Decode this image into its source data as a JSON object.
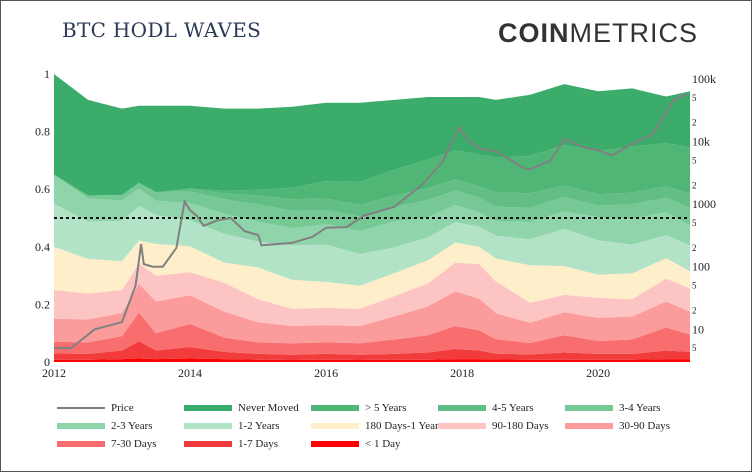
{
  "title": "BTC HODL WAVES",
  "brand": {
    "bold": "COIN",
    "light": "METRICS"
  },
  "chart_data": {
    "type": "area",
    "subtype": "stacked-100-percent",
    "x_axis": {
      "ticks": [
        "2012",
        "2014",
        "2016",
        "2018",
        "2020"
      ],
      "range": [
        "2012-01",
        "2021-05"
      ]
    },
    "y_axis_left": {
      "ticks": [
        "0",
        "0.2",
        "0.4",
        "0.6",
        "0.8",
        "1"
      ],
      "ylim": [
        0,
        1
      ]
    },
    "y_axis_right": {
      "scale": "log",
      "range": [
        3,
        120000
      ],
      "major_ticks": [
        "10",
        "100",
        "1000",
        "10k",
        "100k"
      ],
      "minor_ticks": [
        {
          "v": 5,
          "label": "5"
        },
        {
          "v": 20,
          "label": "2"
        },
        {
          "v": 50,
          "label": "5"
        },
        {
          "v": 200,
          "label": "2"
        },
        {
          "v": 500,
          "label": "5"
        },
        {
          "v": 2000,
          "label": "2"
        },
        {
          "v": 5000,
          "label": "5"
        },
        {
          "v": 20000,
          "label": "2"
        },
        {
          "v": 50000,
          "label": "5"
        }
      ]
    },
    "reference_line": {
      "y": 0.5,
      "style": "dotted"
    },
    "x": [
      "2012.0",
      "2012.5",
      "2013.0",
      "2013.25",
      "2013.5",
      "2014.0",
      "2014.5",
      "2015.0",
      "2015.5",
      "2016.0",
      "2016.5",
      "2017.0",
      "2017.5",
      "2017.9",
      "2018.25",
      "2018.5",
      "2019.0",
      "2019.5",
      "2020.0",
      "2020.5",
      "2021.0",
      "2021.35"
    ],
    "series": [
      {
        "name": "< 1 Day",
        "color": "#ff0000",
        "values": [
          0.008,
          0.008,
          0.01,
          0.012,
          0.01,
          0.012,
          0.01,
          0.008,
          0.007,
          0.008,
          0.007,
          0.008,
          0.008,
          0.01,
          0.01,
          0.009,
          0.008,
          0.008,
          0.008,
          0.008,
          0.01,
          0.01
        ]
      },
      {
        "name": "1-7 Days",
        "color": "#f23b3b",
        "values": [
          0.022,
          0.02,
          0.03,
          0.06,
          0.03,
          0.04,
          0.025,
          0.02,
          0.018,
          0.02,
          0.018,
          0.02,
          0.025,
          0.035,
          0.03,
          0.02,
          0.018,
          0.025,
          0.02,
          0.02,
          0.03,
          0.025
        ]
      },
      {
        "name": "7-30 Days",
        "color": "#f86e6e",
        "values": [
          0.04,
          0.04,
          0.05,
          0.1,
          0.06,
          0.08,
          0.05,
          0.04,
          0.04,
          0.04,
          0.04,
          0.05,
          0.06,
          0.08,
          0.07,
          0.05,
          0.04,
          0.06,
          0.045,
          0.05,
          0.08,
          0.06
        ]
      },
      {
        "name": "30-90 Days",
        "color": "#fb9b9b",
        "values": [
          0.08,
          0.08,
          0.08,
          0.1,
          0.11,
          0.1,
          0.09,
          0.07,
          0.06,
          0.06,
          0.06,
          0.08,
          0.1,
          0.12,
          0.11,
          0.09,
          0.07,
          0.08,
          0.08,
          0.08,
          0.09,
          0.08
        ]
      },
      {
        "name": "90-180 Days",
        "color": "#fdc4c4",
        "values": [
          0.1,
          0.09,
          0.08,
          0.07,
          0.09,
          0.08,
          0.1,
          0.08,
          0.06,
          0.06,
          0.06,
          0.07,
          0.08,
          0.1,
          0.12,
          0.11,
          0.07,
          0.06,
          0.07,
          0.06,
          0.08,
          0.08
        ]
      },
      {
        "name": "180 Days-1 Year",
        "color": "#feeeca",
        "values": [
          0.15,
          0.12,
          0.1,
          0.08,
          0.11,
          0.09,
          0.07,
          0.11,
          0.1,
          0.09,
          0.08,
          0.08,
          0.08,
          0.07,
          0.06,
          0.08,
          0.13,
          0.1,
          0.08,
          0.09,
          0.07,
          0.06
        ]
      },
      {
        "name": "1-2 Years",
        "color": "#b2e3c6",
        "values": [
          0.15,
          0.13,
          0.14,
          0.12,
          0.1,
          0.09,
          0.1,
          0.09,
          0.12,
          0.13,
          0.11,
          0.09,
          0.08,
          0.07,
          0.07,
          0.08,
          0.09,
          0.13,
          0.12,
          0.1,
          0.08,
          0.09
        ]
      },
      {
        "name": "2-3 Years",
        "color": "#8fd4aa",
        "values": [
          0.1,
          0.08,
          0.07,
          0.06,
          0.05,
          0.06,
          0.07,
          0.07,
          0.06,
          0.07,
          0.08,
          0.09,
          0.07,
          0.06,
          0.05,
          0.05,
          0.06,
          0.06,
          0.08,
          0.09,
          0.08,
          0.07
        ]
      },
      {
        "name": "3-4 Years",
        "color": "#76c995",
        "values": [
          0.0,
          0.01,
          0.02,
          0.02,
          0.03,
          0.04,
          0.05,
          0.06,
          0.06,
          0.05,
          0.05,
          0.05,
          0.06,
          0.05,
          0.05,
          0.05,
          0.05,
          0.05,
          0.04,
          0.05,
          0.05,
          0.06
        ]
      },
      {
        "name": "4-5 Years",
        "color": "#62be84",
        "values": [
          0.0,
          0.0,
          0.0,
          0.0,
          0.0,
          0.01,
          0.02,
          0.03,
          0.04,
          0.04,
          0.04,
          0.04,
          0.04,
          0.04,
          0.04,
          0.05,
          0.05,
          0.04,
          0.04,
          0.04,
          0.04,
          0.05
        ]
      },
      {
        "name": "> 5 Years",
        "color": "#50b676",
        "values": [
          0.0,
          0.0,
          0.0,
          0.0,
          0.0,
          0.0,
          0.01,
          0.02,
          0.04,
          0.06,
          0.08,
          0.09,
          0.1,
          0.1,
          0.11,
          0.12,
          0.13,
          0.14,
          0.15,
          0.16,
          0.15,
          0.16
        ]
      },
      {
        "name": "Never Moved",
        "color": "#3cac6b",
        "values": [
          0.35,
          0.332,
          0.3,
          0.268,
          0.3,
          0.288,
          0.285,
          0.282,
          0.281,
          0.272,
          0.275,
          0.242,
          0.217,
          0.185,
          0.2,
          0.201,
          0.212,
          0.212,
          0.207,
          0.202,
          0.162,
          0.195
        ]
      }
    ],
    "price": {
      "name": "Price",
      "color": "#808080",
      "x": [
        "2012.0",
        "2012.25",
        "2012.6",
        "2013.0",
        "2013.2",
        "2013.28",
        "2013.32",
        "2013.45",
        "2013.6",
        "2013.8",
        "2013.92",
        "2014.0",
        "2014.1",
        "2014.2",
        "2014.4",
        "2014.6",
        "2014.8",
        "2015.0",
        "2015.05",
        "2015.5",
        "2015.8",
        "2016.0",
        "2016.3",
        "2016.55",
        "2017.0",
        "2017.4",
        "2017.7",
        "2017.96",
        "2018.1",
        "2018.3",
        "2018.5",
        "2018.9",
        "2019.0",
        "2019.3",
        "2019.5",
        "2019.8",
        "2020.0",
        "2020.2",
        "2020.5",
        "2020.8",
        "2021.0",
        "2021.1",
        "2021.3"
      ],
      "y": [
        5,
        5,
        10,
        13,
        50,
        230,
        110,
        100,
        100,
        200,
        1100,
        800,
        650,
        450,
        550,
        600,
        370,
        320,
        220,
        240,
        300,
        420,
        430,
        650,
        900,
        2000,
        4500,
        17000,
        10000,
        7500,
        7000,
        3800,
        3600,
        5000,
        11000,
        8000,
        7300,
        6000,
        9200,
        13000,
        29000,
        45000,
        58000
      ]
    },
    "legend": [
      "Price",
      "Never Moved",
      "> 5 Years",
      "4-5 Years",
      "3-4 Years",
      "2-3 Years",
      "1-2 Years",
      "180 Days-1 Year",
      "90-180 Days",
      "30-90 Days",
      "7-30 Days",
      "1-7 Days",
      "< 1 Day"
    ]
  }
}
